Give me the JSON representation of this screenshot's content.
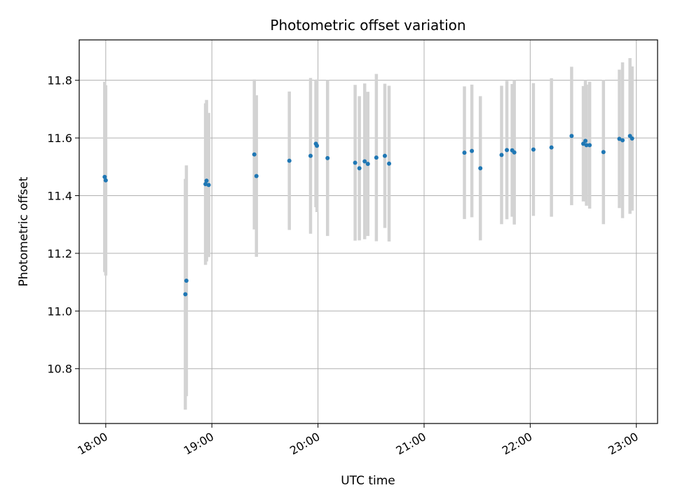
{
  "chart_data": {
    "type": "scatter",
    "title": "Photometric offset variation",
    "xlabel": "UTC time",
    "ylabel": "Photometric offset",
    "x_unit": "hours UTC",
    "xlim": [
      17.75,
      23.2
    ],
    "ylim": [
      10.61,
      11.94
    ],
    "x_ticks": [
      {
        "value": 18,
        "label": "18:00"
      },
      {
        "value": 19,
        "label": "19:00"
      },
      {
        "value": 20,
        "label": "20:00"
      },
      {
        "value": 21,
        "label": "21:00"
      },
      {
        "value": 22,
        "label": "22:00"
      },
      {
        "value": 23,
        "label": "23:00"
      }
    ],
    "y_ticks": [
      {
        "value": 10.8,
        "label": "10.8"
      },
      {
        "value": 11.0,
        "label": "11.0"
      },
      {
        "value": 11.2,
        "label": "11.2"
      },
      {
        "value": 11.4,
        "label": "11.4"
      },
      {
        "value": 11.6,
        "label": "11.6"
      },
      {
        "value": 11.8,
        "label": "11.8"
      }
    ],
    "grid": true,
    "colors": {
      "point": "#1f77b4",
      "errorbar": "#d3d3d3",
      "grid": "#b0b0b0"
    },
    "points": [
      {
        "x": 17.99,
        "y": 11.465,
        "err": 0.33
      },
      {
        "x": 18.0,
        "y": 11.453,
        "err": 0.33
      },
      {
        "x": 18.75,
        "y": 11.058,
        "err": 0.4
      },
      {
        "x": 18.76,
        "y": 11.105,
        "err": 0.4
      },
      {
        "x": 18.94,
        "y": 11.44,
        "err": 0.28
      },
      {
        "x": 18.95,
        "y": 11.452,
        "err": 0.28
      },
      {
        "x": 18.97,
        "y": 11.437,
        "err": 0.25
      },
      {
        "x": 19.4,
        "y": 11.543,
        "err": 0.26
      },
      {
        "x": 19.42,
        "y": 11.468,
        "err": 0.28
      },
      {
        "x": 19.73,
        "y": 11.521,
        "err": 0.24
      },
      {
        "x": 19.93,
        "y": 11.538,
        "err": 0.27
      },
      {
        "x": 19.98,
        "y": 11.58,
        "err": 0.22
      },
      {
        "x": 19.99,
        "y": 11.573,
        "err": 0.23
      },
      {
        "x": 20.09,
        "y": 11.53,
        "err": 0.27
      },
      {
        "x": 20.35,
        "y": 11.514,
        "err": 0.27
      },
      {
        "x": 20.39,
        "y": 11.495,
        "err": 0.25
      },
      {
        "x": 20.44,
        "y": 11.519,
        "err": 0.27
      },
      {
        "x": 20.47,
        "y": 11.51,
        "err": 0.25
      },
      {
        "x": 20.55,
        "y": 11.532,
        "err": 0.29
      },
      {
        "x": 20.63,
        "y": 11.538,
        "err": 0.25
      },
      {
        "x": 20.67,
        "y": 11.511,
        "err": 0.27
      },
      {
        "x": 21.38,
        "y": 11.549,
        "err": 0.23
      },
      {
        "x": 21.45,
        "y": 11.555,
        "err": 0.23
      },
      {
        "x": 21.53,
        "y": 11.495,
        "err": 0.25
      },
      {
        "x": 21.73,
        "y": 11.541,
        "err": 0.24
      },
      {
        "x": 21.78,
        "y": 11.558,
        "err": 0.24
      },
      {
        "x": 21.83,
        "y": 11.557,
        "err": 0.23
      },
      {
        "x": 21.85,
        "y": 11.55,
        "err": 0.25
      },
      {
        "x": 22.03,
        "y": 11.56,
        "err": 0.23
      },
      {
        "x": 22.2,
        "y": 11.567,
        "err": 0.24
      },
      {
        "x": 22.39,
        "y": 11.607,
        "err": 0.24
      },
      {
        "x": 22.5,
        "y": 11.58,
        "err": 0.2
      },
      {
        "x": 22.52,
        "y": 11.59,
        "err": 0.21
      },
      {
        "x": 22.53,
        "y": 11.575,
        "err": 0.21
      },
      {
        "x": 22.56,
        "y": 11.575,
        "err": 0.22
      },
      {
        "x": 22.69,
        "y": 11.551,
        "err": 0.25
      },
      {
        "x": 22.84,
        "y": 11.597,
        "err": 0.24
      },
      {
        "x": 22.87,
        "y": 11.592,
        "err": 0.27
      },
      {
        "x": 22.94,
        "y": 11.607,
        "err": 0.27
      },
      {
        "x": 22.96,
        "y": 11.598,
        "err": 0.25
      }
    ]
  }
}
